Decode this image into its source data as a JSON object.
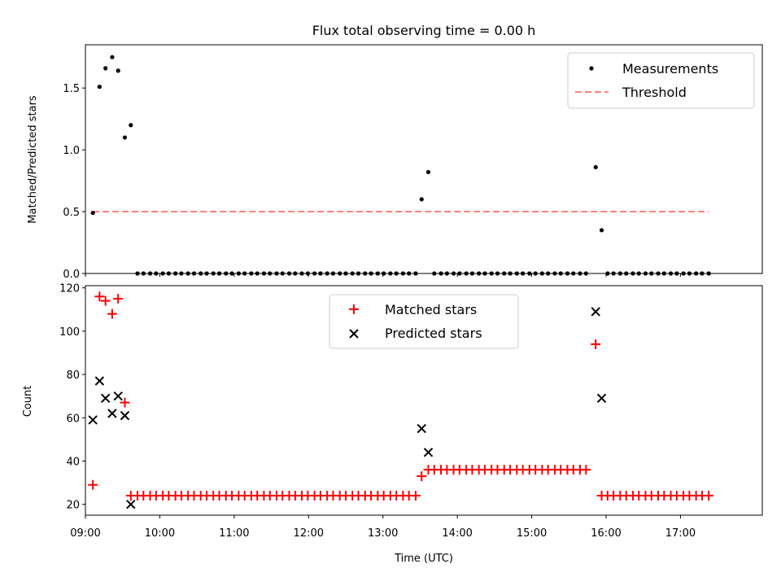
{
  "colors": {
    "measurement": "#000000",
    "threshold": "#ff7f7f",
    "matched": "#ff0000",
    "predicted": "#000000"
  },
  "chart_data": [
    {
      "type": "scatter",
      "title": "Flux total observing time = 0.00 h",
      "ylabel": "Matched/Predicted stars",
      "xlabel": "",
      "xlim": [
        9.0,
        18.1
      ],
      "ylim": [
        0.0,
        1.85
      ],
      "yticks": [
        0.0,
        0.5,
        1.0,
        1.5
      ],
      "ytick_labels": [
        "0.0",
        "0.5",
        "1.0",
        "1.5"
      ],
      "legend": {
        "location": "upper right",
        "entries": [
          "Measurements",
          "Threshold"
        ]
      },
      "series": [
        {
          "name": "Measurements",
          "marker": "dot",
          "points": [
            [
              9.1,
              0.49
            ],
            [
              9.19,
              1.51
            ],
            [
              9.27,
              1.66
            ],
            [
              9.36,
              1.75
            ],
            [
              9.44,
              1.64
            ],
            [
              9.53,
              1.1
            ],
            [
              9.61,
              1.2
            ],
            [
              9.7,
              0
            ],
            [
              9.78,
              0
            ],
            [
              9.87,
              0
            ],
            [
              9.95,
              0
            ],
            [
              10.04,
              0
            ],
            [
              10.12,
              0
            ],
            [
              10.21,
              0
            ],
            [
              10.29,
              0
            ],
            [
              10.38,
              0
            ],
            [
              10.46,
              0
            ],
            [
              10.55,
              0
            ],
            [
              10.63,
              0
            ],
            [
              10.72,
              0
            ],
            [
              10.8,
              0
            ],
            [
              10.89,
              0
            ],
            [
              10.97,
              0
            ],
            [
              11.06,
              0
            ],
            [
              11.14,
              0
            ],
            [
              11.23,
              0
            ],
            [
              11.31,
              0
            ],
            [
              11.4,
              0
            ],
            [
              11.48,
              0
            ],
            [
              11.57,
              0
            ],
            [
              11.65,
              0
            ],
            [
              11.74,
              0
            ],
            [
              11.82,
              0
            ],
            [
              11.91,
              0
            ],
            [
              11.99,
              0
            ],
            [
              12.08,
              0
            ],
            [
              12.16,
              0
            ],
            [
              12.25,
              0
            ],
            [
              12.33,
              0
            ],
            [
              12.42,
              0
            ],
            [
              12.5,
              0
            ],
            [
              12.59,
              0
            ],
            [
              12.67,
              0
            ],
            [
              12.76,
              0
            ],
            [
              12.84,
              0
            ],
            [
              12.93,
              0
            ],
            [
              13.01,
              0
            ],
            [
              13.1,
              0
            ],
            [
              13.18,
              0
            ],
            [
              13.27,
              0
            ],
            [
              13.35,
              0
            ],
            [
              13.44,
              0
            ],
            [
              13.52,
              0.6
            ],
            [
              13.61,
              0.82
            ],
            [
              13.69,
              0
            ],
            [
              13.78,
              0
            ],
            [
              13.86,
              0
            ],
            [
              13.95,
              0
            ],
            [
              14.03,
              0
            ],
            [
              14.12,
              0
            ],
            [
              14.2,
              0
            ],
            [
              14.29,
              0
            ],
            [
              14.37,
              0
            ],
            [
              14.46,
              0
            ],
            [
              14.54,
              0
            ],
            [
              14.63,
              0
            ],
            [
              14.71,
              0
            ],
            [
              14.8,
              0
            ],
            [
              14.88,
              0
            ],
            [
              14.97,
              0
            ],
            [
              15.05,
              0
            ],
            [
              15.14,
              0
            ],
            [
              15.22,
              0
            ],
            [
              15.31,
              0
            ],
            [
              15.39,
              0
            ],
            [
              15.48,
              0
            ],
            [
              15.56,
              0
            ],
            [
              15.65,
              0
            ],
            [
              15.73,
              0
            ],
            [
              15.86,
              0.86
            ],
            [
              15.94,
              0.35
            ],
            [
              16.02,
              0
            ],
            [
              16.1,
              0
            ],
            [
              16.19,
              0
            ],
            [
              16.27,
              0
            ],
            [
              16.36,
              0
            ],
            [
              16.44,
              0
            ],
            [
              16.53,
              0
            ],
            [
              16.61,
              0
            ],
            [
              16.7,
              0
            ],
            [
              16.78,
              0
            ],
            [
              16.87,
              0
            ],
            [
              16.95,
              0
            ],
            [
              17.04,
              0
            ],
            [
              17.12,
              0
            ],
            [
              17.21,
              0
            ],
            [
              17.29,
              0
            ],
            [
              17.38,
              0
            ]
          ]
        },
        {
          "name": "Threshold",
          "style": "dashed",
          "x": [
            9.1,
            17.38
          ],
          "y": [
            0.5,
            0.5
          ]
        }
      ]
    },
    {
      "type": "scatter",
      "title": "",
      "xlabel": "Time (UTC)",
      "ylabel": "Count",
      "xlim": [
        9.0,
        18.1
      ],
      "ylim": [
        15,
        121
      ],
      "xticks": [
        9,
        10,
        11,
        12,
        13,
        14,
        15,
        16,
        17
      ],
      "xtick_labels": [
        "09:00",
        "10:00",
        "11:00",
        "12:00",
        "13:00",
        "14:00",
        "15:00",
        "16:00",
        "17:00"
      ],
      "yticks": [
        20,
        40,
        60,
        80,
        100,
        120
      ],
      "ytick_labels": [
        "20",
        "40",
        "60",
        "80",
        "100",
        "120"
      ],
      "legend": {
        "location": "upper center",
        "entries": [
          "Matched stars",
          "Predicted stars"
        ]
      },
      "series": [
        {
          "name": "Matched stars",
          "marker": "plus",
          "points": [
            [
              9.1,
              29
            ],
            [
              9.19,
              116
            ],
            [
              9.27,
              114
            ],
            [
              9.36,
              108
            ],
            [
              9.44,
              115
            ],
            [
              9.53,
              67
            ],
            [
              9.61,
              24
            ],
            [
              9.7,
              24
            ],
            [
              9.78,
              24
            ],
            [
              9.87,
              24
            ],
            [
              9.95,
              24
            ],
            [
              10.04,
              24
            ],
            [
              10.12,
              24
            ],
            [
              10.21,
              24
            ],
            [
              10.29,
              24
            ],
            [
              10.38,
              24
            ],
            [
              10.46,
              24
            ],
            [
              10.55,
              24
            ],
            [
              10.63,
              24
            ],
            [
              10.72,
              24
            ],
            [
              10.8,
              24
            ],
            [
              10.89,
              24
            ],
            [
              10.97,
              24
            ],
            [
              11.06,
              24
            ],
            [
              11.14,
              24
            ],
            [
              11.23,
              24
            ],
            [
              11.31,
              24
            ],
            [
              11.4,
              24
            ],
            [
              11.48,
              24
            ],
            [
              11.57,
              24
            ],
            [
              11.65,
              24
            ],
            [
              11.74,
              24
            ],
            [
              11.82,
              24
            ],
            [
              11.91,
              24
            ],
            [
              11.99,
              24
            ],
            [
              12.08,
              24
            ],
            [
              12.16,
              24
            ],
            [
              12.25,
              24
            ],
            [
              12.33,
              24
            ],
            [
              12.42,
              24
            ],
            [
              12.5,
              24
            ],
            [
              12.59,
              24
            ],
            [
              12.67,
              24
            ],
            [
              12.76,
              24
            ],
            [
              12.84,
              24
            ],
            [
              12.93,
              24
            ],
            [
              13.01,
              24
            ],
            [
              13.1,
              24
            ],
            [
              13.18,
              24
            ],
            [
              13.27,
              24
            ],
            [
              13.35,
              24
            ],
            [
              13.44,
              24
            ],
            [
              13.52,
              33
            ],
            [
              13.61,
              36
            ],
            [
              13.69,
              36
            ],
            [
              13.78,
              36
            ],
            [
              13.86,
              36
            ],
            [
              13.95,
              36
            ],
            [
              14.03,
              36
            ],
            [
              14.12,
              36
            ],
            [
              14.2,
              36
            ],
            [
              14.29,
              36
            ],
            [
              14.37,
              36
            ],
            [
              14.46,
              36
            ],
            [
              14.54,
              36
            ],
            [
              14.63,
              36
            ],
            [
              14.71,
              36
            ],
            [
              14.8,
              36
            ],
            [
              14.88,
              36
            ],
            [
              14.97,
              36
            ],
            [
              15.05,
              36
            ],
            [
              15.14,
              36
            ],
            [
              15.22,
              36
            ],
            [
              15.31,
              36
            ],
            [
              15.39,
              36
            ],
            [
              15.48,
              36
            ],
            [
              15.56,
              36
            ],
            [
              15.65,
              36
            ],
            [
              15.73,
              36
            ],
            [
              15.86,
              94
            ],
            [
              15.94,
              24
            ],
            [
              16.02,
              24
            ],
            [
              16.1,
              24
            ],
            [
              16.19,
              24
            ],
            [
              16.27,
              24
            ],
            [
              16.36,
              24
            ],
            [
              16.44,
              24
            ],
            [
              16.53,
              24
            ],
            [
              16.61,
              24
            ],
            [
              16.7,
              24
            ],
            [
              16.78,
              24
            ],
            [
              16.87,
              24
            ],
            [
              16.95,
              24
            ],
            [
              17.04,
              24
            ],
            [
              17.12,
              24
            ],
            [
              17.21,
              24
            ],
            [
              17.29,
              24
            ],
            [
              17.38,
              24
            ]
          ]
        },
        {
          "name": "Predicted stars",
          "marker": "x",
          "points": [
            [
              9.1,
              59
            ],
            [
              9.19,
              77
            ],
            [
              9.27,
              69
            ],
            [
              9.36,
              62
            ],
            [
              9.44,
              70
            ],
            [
              9.53,
              61
            ],
            [
              9.61,
              20
            ],
            [
              13.52,
              55
            ],
            [
              13.61,
              44
            ],
            [
              15.86,
              109
            ],
            [
              15.94,
              69
            ]
          ]
        }
      ]
    }
  ]
}
